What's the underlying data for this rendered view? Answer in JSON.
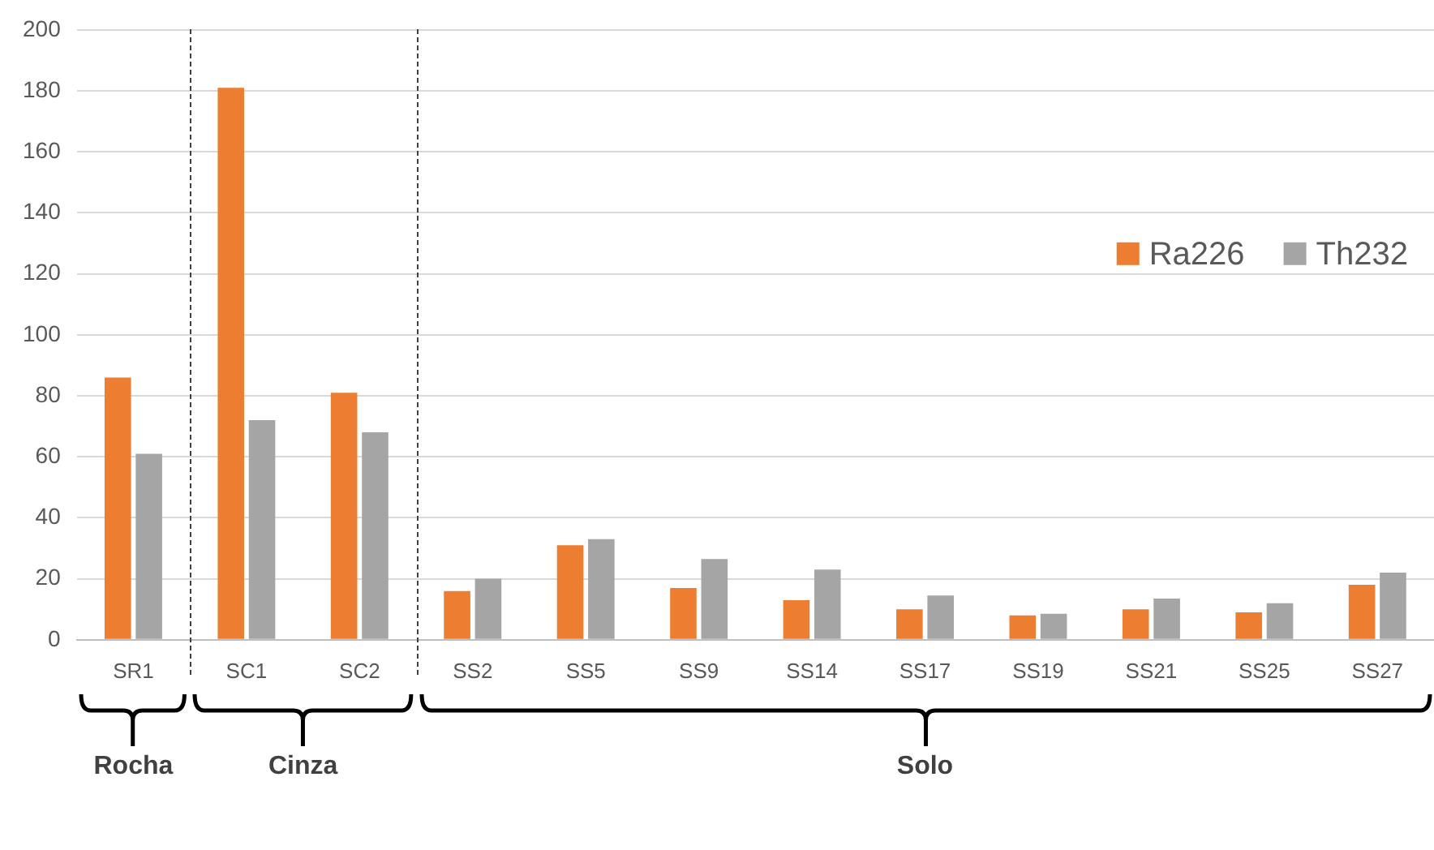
{
  "chart_data": {
    "type": "bar",
    "categories": [
      "SR1",
      "SC1",
      "SC2",
      "SS2",
      "SS5",
      "SS9",
      "SS14",
      "SS17",
      "SS19",
      "SS21",
      "SS25",
      "SS27"
    ],
    "series": [
      {
        "name": "Ra226",
        "color": "#ed7d31",
        "values": [
          86,
          181,
          81,
          16,
          31,
          17,
          13,
          10,
          8,
          10,
          9,
          18
        ]
      },
      {
        "name": "Th232",
        "color": "#a5a5a5",
        "values": [
          61,
          72,
          68,
          20,
          33,
          26.5,
          23,
          14.5,
          8.5,
          13.5,
          12,
          22
        ]
      }
    ],
    "ylim": [
      0,
      200
    ],
    "yticks": [
      0,
      20,
      40,
      60,
      80,
      100,
      120,
      140,
      160,
      180,
      200
    ],
    "grid": "y",
    "legend": "top right",
    "annotations": [
      "Rocha",
      "Cinza",
      "Solo"
    ]
  }
}
